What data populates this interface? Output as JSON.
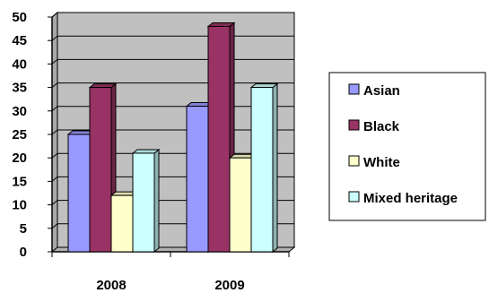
{
  "chart_data": {
    "type": "bar",
    "categories": [
      "2008",
      "2009"
    ],
    "series": [
      {
        "name": "Asian",
        "values": [
          25,
          31
        ],
        "color": "#9999ff"
      },
      {
        "name": "Black",
        "values": [
          35,
          48
        ],
        "color": "#993366"
      },
      {
        "name": "White",
        "values": [
          12,
          20
        ],
        "color": "#ffffcc"
      },
      {
        "name": "Mixed heritage",
        "values": [
          21,
          35
        ],
        "color": "#ccffff"
      }
    ],
    "title": "",
    "xlabel": "",
    "ylabel": "",
    "ylim": [
      0,
      50
    ],
    "yticks": [
      0,
      5,
      10,
      15,
      20,
      25,
      30,
      35,
      40,
      45,
      50
    ],
    "grid": true,
    "plot_background": "#c0c0c0",
    "legend_position": "right",
    "style": "3d-column"
  }
}
